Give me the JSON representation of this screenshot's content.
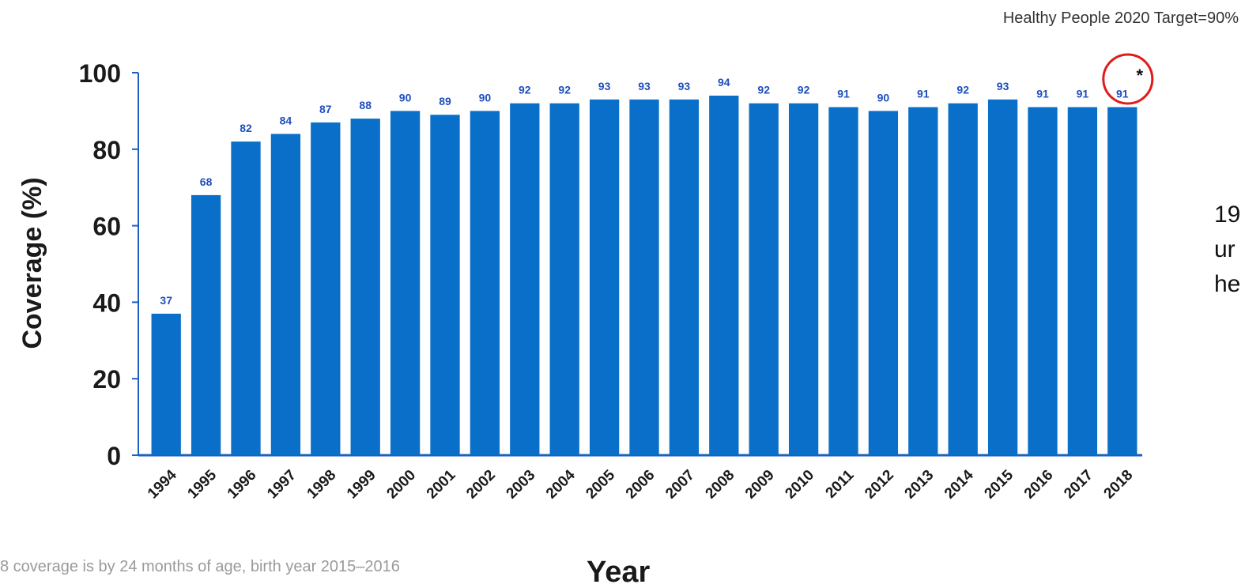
{
  "header": {
    "target_note": "Healthy People 2020 Target=90%"
  },
  "footer": {
    "footnote": "8 coverage is by 24 months of age, birth year 2015–2016"
  },
  "side": {
    "lines": [
      "19",
      "ur",
      "he"
    ]
  },
  "colors": {
    "bar": "#0a6fc8",
    "label": "#1f4fbf",
    "axis": "#1b5fbf",
    "highlight": "#e11a1a"
  },
  "chart_data": {
    "type": "bar",
    "title": "",
    "xlabel": "Year",
    "ylabel": "Coverage (%)",
    "ylim": [
      0,
      100
    ],
    "yticks": [
      0,
      20,
      40,
      60,
      80,
      100
    ],
    "categories": [
      "1994",
      "1995",
      "1996",
      "1997",
      "1998",
      "1999",
      "2000",
      "2001",
      "2002",
      "2003",
      "2004",
      "2005",
      "2006",
      "2007",
      "2008",
      "2009",
      "2010",
      "2011",
      "2012",
      "2013",
      "2014",
      "2015",
      "2016",
      "2017",
      "2018"
    ],
    "values": [
      37,
      68,
      82,
      84,
      87,
      88,
      90,
      89,
      90,
      92,
      92,
      93,
      93,
      93,
      94,
      92,
      92,
      91,
      90,
      91,
      92,
      93,
      91,
      91,
      91
    ],
    "highlight": {
      "category": "2018",
      "marker": "*"
    },
    "grid": false,
    "legend": "none"
  }
}
